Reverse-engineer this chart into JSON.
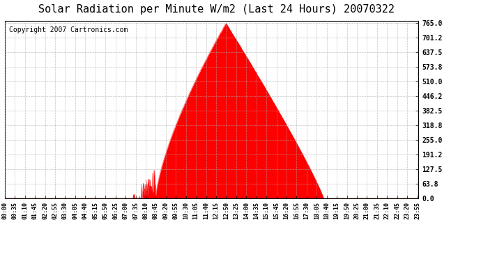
{
  "title": "Solar Radiation per Minute W/m2 (Last 24 Hours) 20070322",
  "copyright": "Copyright 2007 Cartronics.com",
  "fill_color": "#ff0000",
  "line_color": "#ff0000",
  "background_color": "#ffffff",
  "plot_bg_color": "#ffffff",
  "grid_color": "#aaaaaa",
  "dashed_line_color": "#ff0000",
  "yticks": [
    0.0,
    63.8,
    127.5,
    191.2,
    255.0,
    318.8,
    382.5,
    446.2,
    510.0,
    573.8,
    637.5,
    701.2,
    765.0
  ],
  "ymax": 765.0,
  "ymin": 0.0,
  "xtick_labels": [
    "00:00",
    "00:35",
    "01:10",
    "01:45",
    "02:20",
    "02:55",
    "03:30",
    "04:05",
    "04:40",
    "05:15",
    "05:50",
    "06:25",
    "07:00",
    "07:35",
    "08:10",
    "08:45",
    "09:20",
    "09:55",
    "10:30",
    "11:05",
    "11:40",
    "12:15",
    "12:50",
    "13:25",
    "14:00",
    "14:35",
    "15:10",
    "15:45",
    "16:20",
    "16:55",
    "17:30",
    "18:05",
    "18:40",
    "19:15",
    "19:50",
    "20:25",
    "21:00",
    "21:35",
    "22:10",
    "22:45",
    "23:20",
    "23:55"
  ],
  "title_fontsize": 11,
  "copyright_fontsize": 7
}
